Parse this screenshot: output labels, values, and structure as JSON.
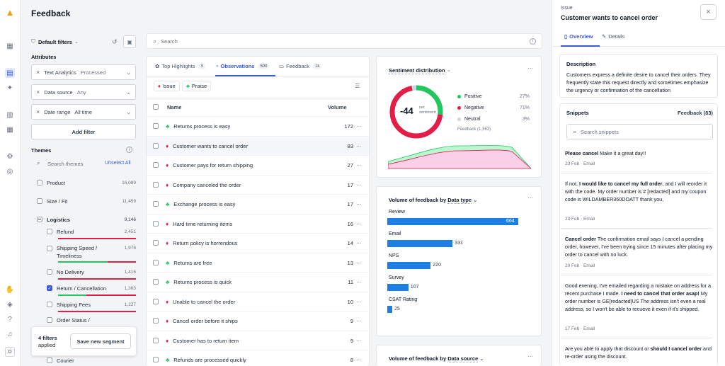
{
  "app": {
    "title": "Feedback",
    "avatar_initial": "D"
  },
  "filters": {
    "default_label": "Default filters",
    "attributes_label": "Attributes",
    "items": [
      {
        "key": "Text Analytics",
        "value": "Processed"
      },
      {
        "key": "Data source",
        "value": "Any"
      },
      {
        "key": "Date range",
        "value": "All time"
      }
    ],
    "add_filter": "Add filter",
    "count": "4 filters",
    "applied": "applied",
    "save_segment": "Save new segment"
  },
  "themes": {
    "header": "Themes",
    "search_placeholder": "Search themes",
    "unselect_all": "Unselect All",
    "items": [
      {
        "label": "Product",
        "count": "16,089",
        "checked": false
      },
      {
        "label": "Size / Fit",
        "count": "11,459",
        "checked": false
      },
      {
        "label": "Logistics",
        "count": "9,146",
        "checked": false
      },
      {
        "label": "Refund",
        "count": "2,451",
        "checked": false
      },
      {
        "label": "Shipping Speed /",
        "label2": "Timeliness",
        "count": "1,978",
        "checked": false
      },
      {
        "label": "No Delivery",
        "count": "1,416",
        "checked": false
      },
      {
        "label": "Return / Cancellation",
        "count": "1,363",
        "checked": true
      },
      {
        "label": "Shipping Fees",
        "count": "1,227",
        "checked": false
      },
      {
        "label": "Order Status /",
        "count": "",
        "checked": false
      },
      {
        "label": "Courier",
        "count": "",
        "checked": false
      }
    ]
  },
  "search": {
    "placeholder": "Search"
  },
  "tabs": [
    {
      "label": "Top Highlights",
      "count": "3"
    },
    {
      "label": "Observations",
      "count": "500"
    },
    {
      "label": "Feedback",
      "count": "1k"
    }
  ],
  "chips": [
    "Issue",
    "Praise"
  ],
  "table": {
    "col_name": "Name",
    "col_volume": "Volume",
    "rows": [
      {
        "name": "Returns process is easy",
        "volume": "172",
        "type": "praise"
      },
      {
        "name": "Customer wants to cancel order",
        "volume": "83",
        "type": "issue"
      },
      {
        "name": "Customer pays for return shipping",
        "volume": "27",
        "type": "issue"
      },
      {
        "name": "Company canceled the order",
        "volume": "17",
        "type": "issue"
      },
      {
        "name": "Exchange process is easy",
        "volume": "17",
        "type": "praise"
      },
      {
        "name": "Hard time returning items",
        "volume": "16",
        "type": "issue"
      },
      {
        "name": "Return policy is horrendous",
        "volume": "14",
        "type": "issue"
      },
      {
        "name": "Returns are free",
        "volume": "13",
        "type": "praise"
      },
      {
        "name": "Returns process is quick",
        "volume": "11",
        "type": "praise"
      },
      {
        "name": "Unable to cancel the order",
        "volume": "10",
        "type": "issue"
      },
      {
        "name": "Cancel order before it ships",
        "volume": "9",
        "type": "issue"
      },
      {
        "name": "Customer has to return item",
        "volume": "9",
        "type": "issue"
      },
      {
        "name": "Refunds are processed quickly",
        "volume": "8",
        "type": "praise"
      }
    ]
  },
  "sentiment": {
    "title": "Sentiment distribution",
    "net_value": "-44",
    "net_label1": "net",
    "net_label2": "sentiment",
    "legend": [
      {
        "label": "Positive",
        "pct": "27%"
      },
      {
        "label": "Negative",
        "pct": "71%"
      },
      {
        "label": "Neutral",
        "pct": "3%"
      }
    ],
    "footnote": "Feedback (1,363)",
    "colors": {
      "positive": "#22c55e",
      "negative": "#e11d48",
      "neutral": "#cbd5e1"
    }
  },
  "chart_data": {
    "type": "bar",
    "title_prefix": "Volume of feedback by",
    "title_field": "Data type",
    "categories": [
      "Review",
      "Email",
      "NPS",
      "Survey",
      "CSAT Rating"
    ],
    "values": [
      664,
      331,
      220,
      107,
      25
    ],
    "color": "#1d7fe3"
  },
  "volume_source": {
    "title_prefix": "Volume of feedback by",
    "title_field": "Data source"
  },
  "issue_panel": {
    "kicker": "Issue",
    "title": "Customer wants to cancel order",
    "tabs": [
      "Overview",
      "Details"
    ],
    "description_label": "Description",
    "description": "Customers express a definite desire to cancel their orders. They frequently state this request directly and sometimes emphasize the urgency or confirmation of the cancellation",
    "snippets_label": "Snippets",
    "feedback_count": "Feedback (83)",
    "search_placeholder": "Search snippets",
    "snippets": [
      {
        "bold1": "Please cancel",
        "text1": " Make it a great day!!",
        "bold2": "",
        "text2": "",
        "date": "23 Feb",
        "source": "Email"
      },
      {
        "bold1": "",
        "text1": "If not, ",
        "bold2": "I would like to cancel my full order",
        "text2": ", and I will reorder it with the code. My order number is # [redacted] and my coupon code is WILDAMBER360DOATT thank you,",
        "date": "23 Feb",
        "source": "Email"
      },
      {
        "bold1": "Cancel order",
        "text1": " The confirmation email says I cancel a pending order, however, I've been trying since 15 minutes after placing my order to cancel with no luck.",
        "bold2": "",
        "text2": "",
        "date": "20 Feb",
        "source": "Email"
      },
      {
        "bold1": "",
        "text1": "Good evening, I've emailed regarding a mistake on address for a recent purchase I made. ",
        "bold2": "I need to cancel that order asap!",
        "text2": " My order number is GE[redacted]US The address isn't even a real address, so I won't be able to recueve it even if it's shipped.",
        "date": "17 Feb",
        "source": "Email"
      },
      {
        "bold1": "",
        "text1": "Are you able to apply that discount or ",
        "bold2": "should I cancel order",
        "text2": " and re-order using the discount.",
        "date": "",
        "source": ""
      }
    ]
  }
}
